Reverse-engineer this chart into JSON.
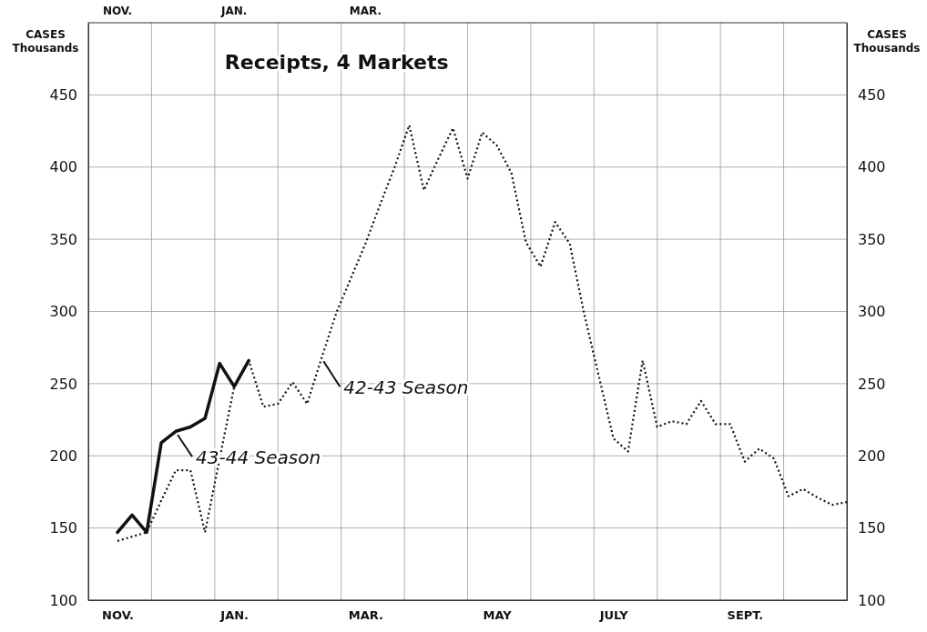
{
  "chart_data": {
    "type": "line",
    "title": "Receipts, 4 Markets",
    "ylabel": "CASES Thousands",
    "y2label": "CASES Thousands",
    "annotations": [
      "NOV.",
      "JAN.",
      "MAR."
    ],
    "categories": [
      null,
      null,
      "NOV.",
      null,
      null,
      null,
      null,
      null,
      null,
      null,
      "JAN.",
      null,
      null,
      null,
      null,
      null,
      null,
      null,
      null,
      "MAR.",
      null,
      null,
      null,
      null,
      null,
      null,
      null,
      null,
      "MAY",
      null,
      null,
      null,
      null,
      null,
      null,
      null,
      "JULY",
      null,
      null,
      null,
      null,
      null,
      null,
      null,
      null,
      "SEPT.",
      null,
      null,
      null,
      null,
      null,
      null,
      null
    ],
    "ylim": [
      100,
      500
    ],
    "yticks": [
      100,
      150,
      200,
      250,
      300,
      350,
      400,
      450
    ],
    "y2lim": [
      100,
      500
    ],
    "y2ticks": [
      100,
      150,
      200,
      250,
      300,
      350,
      400,
      450
    ],
    "grid": true,
    "marker": "none",
    "series": [
      {
        "name": "42-43 Season",
        "color": "#111111",
        "line_style": "dotted",
        "values": [
          null,
          null,
          141,
          144,
          147,
          169,
          190,
          190,
          147,
          198,
          248,
          266,
          234,
          236,
          251,
          236,
          268,
          299,
          323,
          347,
          374,
          400,
          429,
          384,
          406,
          427,
          392,
          424,
          415,
          396,
          348,
          331,
          362,
          347,
          298,
          255,
          212,
          203,
          266,
          220,
          224,
          222,
          238,
          222,
          222,
          196,
          205,
          198,
          172,
          177,
          171,
          166,
          168
        ]
      },
      {
        "name": "43-44 Season",
        "color": "#111111",
        "line_style": "solid",
        "values": [
          null,
          null,
          147,
          159,
          147,
          209,
          217,
          220,
          226,
          264,
          248,
          266,
          null,
          null,
          null,
          null,
          null,
          null,
          null,
          null,
          null,
          null,
          null,
          null,
          null,
          null,
          null,
          null,
          null,
          null,
          null,
          null,
          null,
          null,
          null,
          null,
          null,
          null,
          null,
          null,
          null,
          null,
          null,
          null,
          null,
          null,
          null,
          null,
          null,
          null,
          null,
          null,
          null
        ]
      }
    ]
  }
}
